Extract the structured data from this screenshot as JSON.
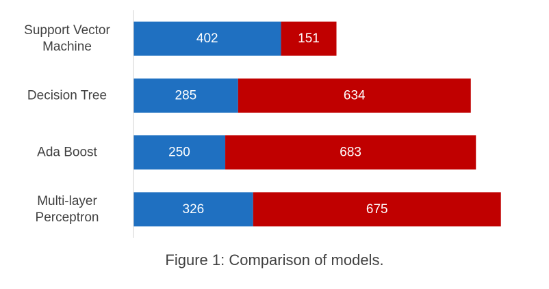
{
  "caption": "Figure 1: Comparison of models.",
  "colors": {
    "series1": "#1f70c1",
    "series2": "#c00000",
    "axis": "#d0d0d0",
    "label": "#404040"
  },
  "chart_data": {
    "type": "bar",
    "orientation": "horizontal",
    "stacked": true,
    "title": "",
    "xlabel": "",
    "ylabel": "",
    "grid": false,
    "legend": "none",
    "xlim": [
      0,
      1050
    ],
    "categories": [
      [
        "Support Vector",
        "Machine"
      ],
      [
        "Decision Tree"
      ],
      [
        "Ada Boost"
      ],
      [
        "Multi-layer",
        "Perceptron"
      ]
    ],
    "series": [
      {
        "color": "#1f70c1",
        "values": [
          402,
          285,
          250,
          326
        ]
      },
      {
        "color": "#c00000",
        "values": [
          151,
          634,
          683,
          675
        ]
      }
    ]
  }
}
